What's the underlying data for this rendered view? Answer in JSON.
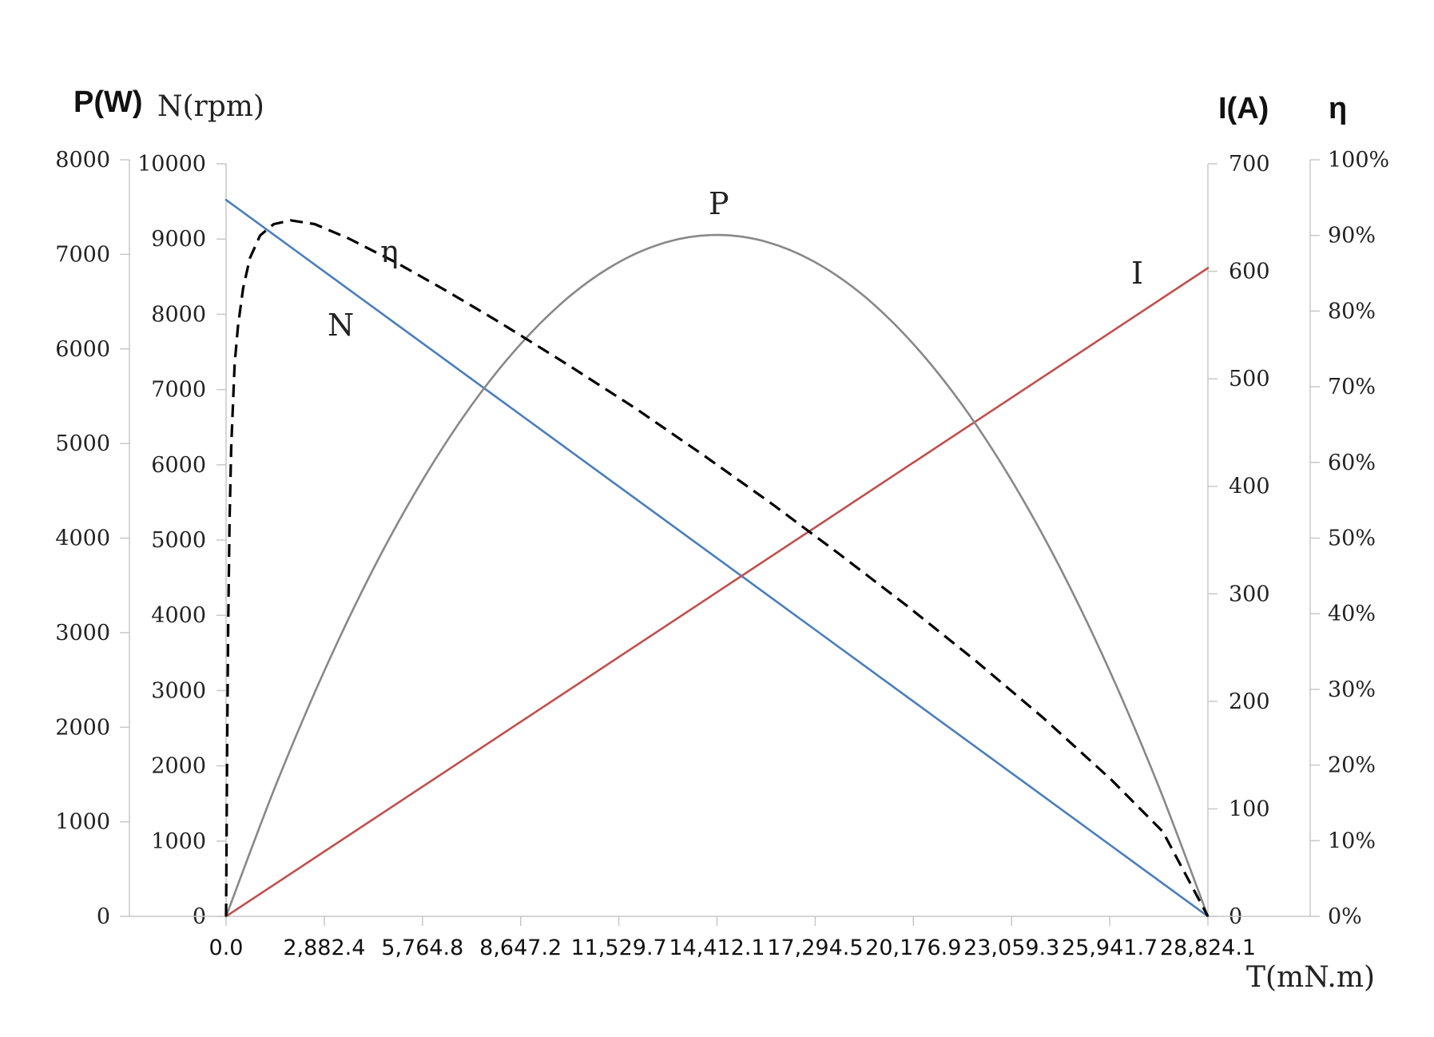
{
  "chart_data": {
    "type": "line",
    "title": "",
    "xlabel": "T(mN.m)",
    "x_ticks": [
      "0.0",
      "2,882.4",
      "5,764.8",
      "8,647.2",
      "11,529.7",
      "14,412.1",
      "17,294.5",
      "20,176.9",
      "23,059.3",
      "25,941.7",
      "28,824.1"
    ],
    "xlim": [
      0,
      28824.1
    ],
    "axes": {
      "P": {
        "label": "P(W)",
        "ylim": [
          0,
          8000
        ],
        "ticks": [
          "0",
          "1000",
          "2000",
          "3000",
          "4000",
          "5000",
          "6000",
          "7000",
          "8000"
        ]
      },
      "N": {
        "label": "N(rpm)",
        "ylim": [
          0,
          10000
        ],
        "ticks": [
          "0",
          "1000",
          "2000",
          "3000",
          "4000",
          "5000",
          "6000",
          "7000",
          "8000",
          "9000",
          "10000"
        ]
      },
      "I": {
        "label": "I(A)",
        "ylim": [
          0,
          700
        ],
        "ticks": [
          "0",
          "100",
          "200",
          "300",
          "400",
          "500",
          "600",
          "700"
        ]
      },
      "eta": {
        "label": "η",
        "ylim": [
          0,
          1
        ],
        "ticks": [
          "0%",
          "10%",
          "20%",
          "30%",
          "40%",
          "50%",
          "60%",
          "70%",
          "80%",
          "90%",
          "100%"
        ]
      }
    },
    "series": [
      {
        "name": "N",
        "axis": "N",
        "color": "#4a7ebb",
        "style": "solid",
        "x": [
          0,
          28824.1
        ],
        "y": [
          9520,
          0
        ]
      },
      {
        "name": "I",
        "axis": "I",
        "color": "#c0504d",
        "style": "solid",
        "x": [
          0,
          28824.1
        ],
        "y": [
          0,
          603
        ]
      },
      {
        "name": "P",
        "axis": "P",
        "color": "#888888",
        "style": "solid",
        "x": [
          0,
          1441.2,
          2882.4,
          4323.6,
          5764.8,
          7206,
          8647.2,
          10088.4,
          11529.7,
          12970.9,
          14412.1,
          15853.3,
          17294.5,
          18735.7,
          20176.9,
          21618.1,
          23059.3,
          24500.5,
          25941.7,
          27382.9,
          28824.1
        ],
        "y": [
          0,
          1369,
          2594,
          3675,
          4611,
          5404,
          6052,
          6557,
          6917,
          7133,
          7205,
          7133,
          6917,
          6557,
          6052,
          5404,
          4611,
          3675,
          2594,
          1369,
          0
        ]
      },
      {
        "name": "η",
        "axis": "eta",
        "color": "#000000",
        "style": "dashed",
        "x": [
          0,
          30,
          60,
          100,
          150,
          250,
          350,
          500,
          700,
          1000,
          1400,
          1900,
          2600,
          3600,
          5000,
          6500,
          8000,
          10000,
          12000,
          14000,
          16000,
          18000,
          20000,
          22000,
          24000,
          26000,
          27500,
          28824.1
        ],
        "y": [
          0,
          0.22,
          0.38,
          0.52,
          0.62,
          0.73,
          0.78,
          0.83,
          0.87,
          0.9,
          0.915,
          0.92,
          0.915,
          0.896,
          0.864,
          0.826,
          0.786,
          0.73,
          0.672,
          0.61,
          0.546,
          0.479,
          0.41,
          0.338,
          0.262,
          0.18,
          0.112,
          0
        ]
      }
    ],
    "annotations": [
      {
        "text": "N",
        "series": "N"
      },
      {
        "text": "η",
        "series": "η"
      },
      {
        "text": "P",
        "series": "P"
      },
      {
        "text": "I",
        "series": "I"
      }
    ],
    "grid": false,
    "legend": "none"
  }
}
